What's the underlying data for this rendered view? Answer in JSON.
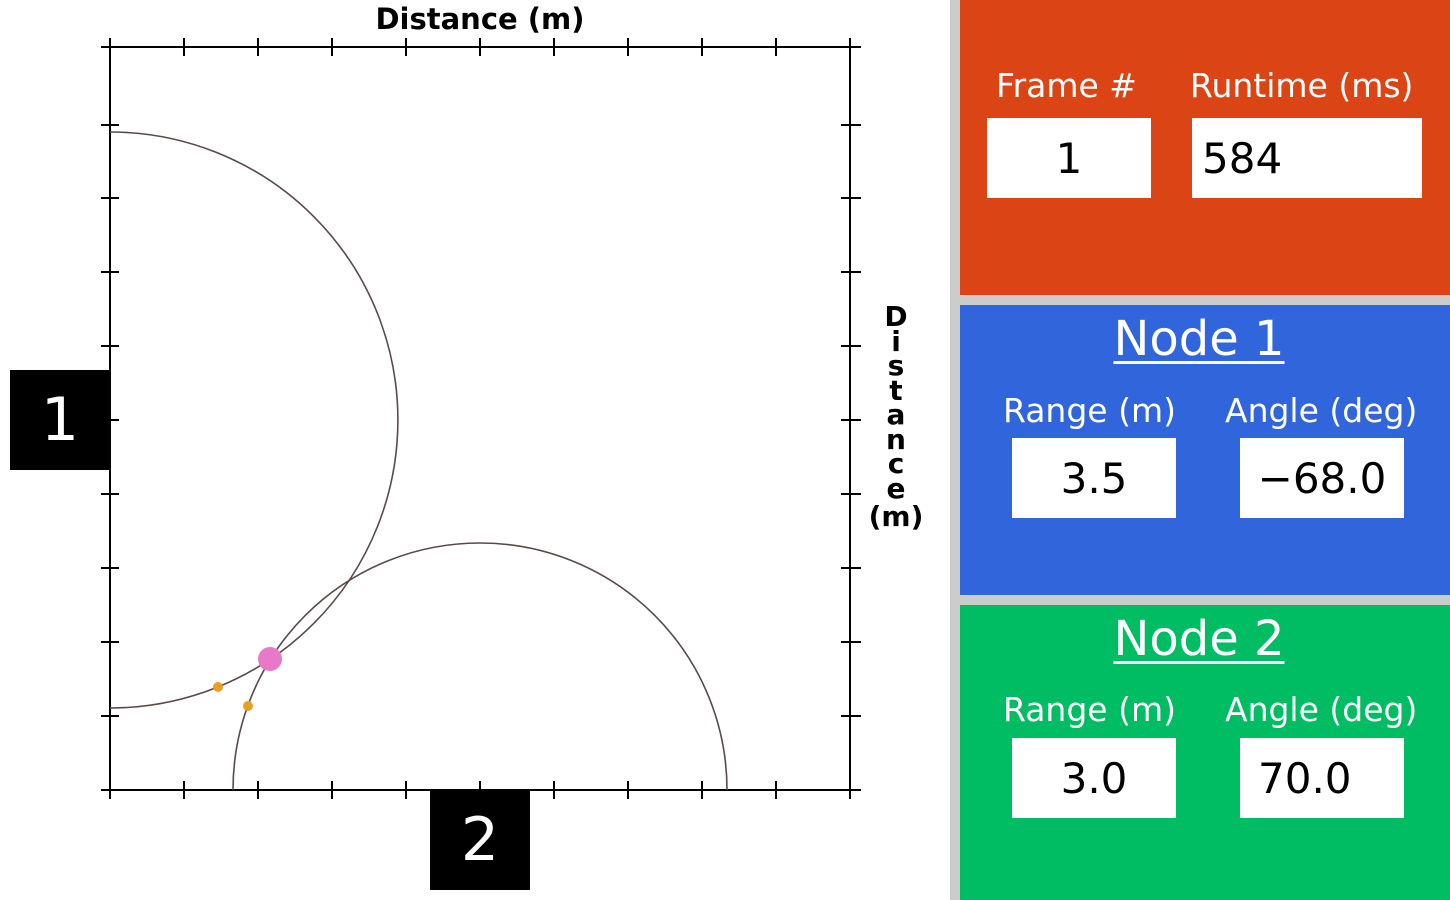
{
  "plot": {
    "title_top": "Distance (m)",
    "title_right_letters": [
      "D",
      "i",
      "s",
      "t",
      "a",
      "n",
      "c",
      "e"
    ],
    "title_right_unit": "(m)",
    "range_x": [
      0,
      5
    ],
    "range_y": [
      0,
      5
    ],
    "node1_label": "1",
    "node2_label": "2",
    "circle_color": "#5a4a4a",
    "estimate_color": "#e879c9",
    "point_color": "#e8a020"
  },
  "frame": {
    "frame_label": "Frame #",
    "frame_value": "1",
    "runtime_label": "Runtime (ms)",
    "runtime_value": "584",
    "bg_color": "#db4516"
  },
  "node1": {
    "title": "Node 1",
    "range_label": "Range (m)",
    "range_value": "3.5",
    "angle_label": "Angle (deg)",
    "angle_value": "−68.0",
    "bg_color": "#3065db"
  },
  "node2": {
    "title": "Node 2",
    "range_label": "Range (m)",
    "range_value": "3.0",
    "angle_label": "Angle (deg)",
    "angle_value": "70.0",
    "bg_color": "#00bd63"
  }
}
